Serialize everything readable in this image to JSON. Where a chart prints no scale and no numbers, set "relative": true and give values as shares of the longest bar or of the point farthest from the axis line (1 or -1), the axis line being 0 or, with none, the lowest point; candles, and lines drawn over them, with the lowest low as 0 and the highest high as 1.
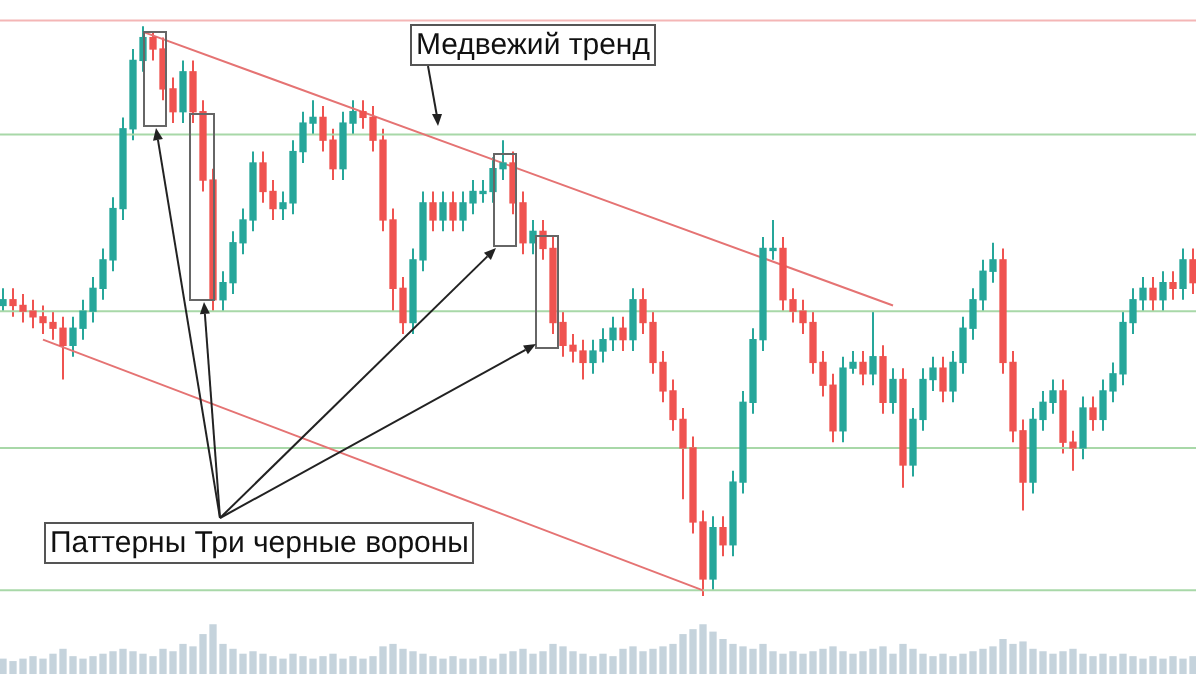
{
  "chart_data": [
    {
      "type": "candlestick",
      "relative": true,
      "categories": [
        null,
        null,
        null,
        null,
        null,
        null,
        null,
        null,
        null,
        null,
        null,
        null,
        null,
        null,
        null,
        null,
        null,
        null,
        null,
        null,
        null,
        null,
        null,
        null,
        null,
        null,
        null,
        null,
        null,
        null,
        null,
        null,
        null,
        null,
        null,
        null,
        null,
        null,
        null,
        null,
        null,
        null,
        null,
        null,
        null,
        null,
        null,
        null,
        null,
        null,
        null,
        null,
        null,
        null,
        null,
        null,
        null,
        null,
        null,
        null,
        null,
        null,
        null,
        null,
        null,
        null,
        null,
        null,
        null,
        null,
        null,
        null,
        null,
        null,
        null,
        null,
        null,
        null,
        null,
        null,
        null,
        null,
        null,
        null,
        null,
        null,
        null,
        null,
        null,
        null,
        null,
        null,
        null,
        null,
        null,
        null,
        null,
        null,
        null,
        null,
        null,
        null,
        null,
        null,
        null,
        null,
        null,
        null,
        null,
        null,
        null,
        null,
        null,
        null,
        null,
        null,
        null,
        null,
        null,
        null
      ],
      "ohlc": [
        [
          0.51,
          0.54,
          0.5,
          0.52
        ],
        [
          0.52,
          0.54,
          0.49,
          0.51
        ],
        [
          0.51,
          0.53,
          0.48,
          0.5
        ],
        [
          0.5,
          0.52,
          0.47,
          0.49
        ],
        [
          0.49,
          0.51,
          0.46,
          0.48
        ],
        [
          0.48,
          0.5,
          0.45,
          0.47
        ],
        [
          0.47,
          0.49,
          0.38,
          0.44
        ],
        [
          0.44,
          0.49,
          0.42,
          0.47
        ],
        [
          0.47,
          0.52,
          0.45,
          0.5
        ],
        [
          0.5,
          0.56,
          0.48,
          0.54
        ],
        [
          0.54,
          0.61,
          0.52,
          0.59
        ],
        [
          0.59,
          0.7,
          0.57,
          0.68
        ],
        [
          0.68,
          0.84,
          0.66,
          0.82
        ],
        [
          0.82,
          0.96,
          0.8,
          0.94
        ],
        [
          0.94,
          1,
          0.92,
          0.98
        ],
        [
          0.98,
          0.99,
          0.94,
          0.96
        ],
        [
          0.96,
          0.98,
          0.87,
          0.89
        ],
        [
          0.89,
          0.91,
          0.83,
          0.85
        ],
        [
          0.85,
          0.94,
          0.83,
          0.92
        ],
        [
          0.92,
          0.94,
          0.83,
          0.85
        ],
        [
          0.85,
          0.87,
          0.71,
          0.73
        ],
        [
          0.73,
          0.75,
          0.5,
          0.52
        ],
        [
          0.52,
          0.57,
          0.5,
          0.55
        ],
        [
          0.55,
          0.64,
          0.53,
          0.62
        ],
        [
          0.62,
          0.68,
          0.6,
          0.66
        ],
        [
          0.66,
          0.78,
          0.64,
          0.76
        ],
        [
          0.76,
          0.78,
          0.69,
          0.71
        ],
        [
          0.71,
          0.73,
          0.66,
          0.68
        ],
        [
          0.68,
          0.71,
          0.66,
          0.69
        ],
        [
          0.69,
          0.8,
          0.67,
          0.78
        ],
        [
          0.78,
          0.85,
          0.76,
          0.83
        ],
        [
          0.83,
          0.87,
          0.81,
          0.84
        ],
        [
          0.84,
          0.86,
          0.78,
          0.8
        ],
        [
          0.8,
          0.82,
          0.73,
          0.75
        ],
        [
          0.75,
          0.85,
          0.73,
          0.83
        ],
        [
          0.83,
          0.87,
          0.81,
          0.85
        ],
        [
          0.85,
          0.87,
          0.82,
          0.84
        ],
        [
          0.84,
          0.86,
          0.78,
          0.8
        ],
        [
          0.8,
          0.82,
          0.64,
          0.66
        ],
        [
          0.66,
          0.68,
          0.5,
          0.54
        ],
        [
          0.54,
          0.56,
          0.46,
          0.48
        ],
        [
          0.48,
          0.61,
          0.46,
          0.59
        ],
        [
          0.59,
          0.71,
          0.57,
          0.69
        ],
        [
          0.69,
          0.71,
          0.64,
          0.66
        ],
        [
          0.66,
          0.71,
          0.64,
          0.69
        ],
        [
          0.69,
          0.71,
          0.64,
          0.66
        ],
        [
          0.66,
          0.71,
          0.64,
          0.69
        ],
        [
          0.69,
          0.73,
          0.67,
          0.71
        ],
        [
          0.71,
          0.73,
          0.69,
          0.71
        ],
        [
          0.71,
          0.77,
          0.69,
          0.75
        ],
        [
          0.75,
          0.8,
          0.73,
          0.76
        ],
        [
          0.76,
          0.78,
          0.67,
          0.69
        ],
        [
          0.69,
          0.71,
          0.6,
          0.62
        ],
        [
          0.62,
          0.66,
          0.6,
          0.64
        ],
        [
          0.64,
          0.66,
          0.59,
          0.61
        ],
        [
          0.61,
          0.63,
          0.46,
          0.48
        ],
        [
          0.48,
          0.5,
          0.42,
          0.44
        ],
        [
          0.44,
          0.46,
          0.41,
          0.43
        ],
        [
          0.43,
          0.45,
          0.38,
          0.41
        ],
        [
          0.41,
          0.45,
          0.39,
          0.43
        ],
        [
          0.43,
          0.47,
          0.41,
          0.45
        ],
        [
          0.45,
          0.49,
          0.43,
          0.47
        ],
        [
          0.47,
          0.49,
          0.43,
          0.45
        ],
        [
          0.45,
          0.54,
          0.43,
          0.52
        ],
        [
          0.52,
          0.54,
          0.46,
          0.48
        ],
        [
          0.48,
          0.5,
          0.39,
          0.41
        ],
        [
          0.41,
          0.43,
          0.34,
          0.36
        ],
        [
          0.36,
          0.38,
          0.29,
          0.31
        ],
        [
          0.31,
          0.33,
          0.17,
          0.26
        ],
        [
          0.26,
          0.28,
          0.11,
          0.13
        ],
        [
          0.13,
          0.15,
          0,
          0.03
        ],
        [
          0.03,
          0.14,
          0.01,
          0.12
        ],
        [
          0.12,
          0.14,
          0.07,
          0.09
        ],
        [
          0.09,
          0.22,
          0.07,
          0.2
        ],
        [
          0.2,
          0.36,
          0.18,
          0.34
        ],
        [
          0.34,
          0.47,
          0.32,
          0.45
        ],
        [
          0.45,
          0.63,
          0.43,
          0.61
        ],
        [
          0.61,
          0.66,
          0.59,
          0.61
        ],
        [
          0.61,
          0.63,
          0.5,
          0.52
        ],
        [
          0.52,
          0.54,
          0.48,
          0.5
        ],
        [
          0.5,
          0.52,
          0.46,
          0.48
        ],
        [
          0.48,
          0.5,
          0.39,
          0.41
        ],
        [
          0.41,
          0.43,
          0.35,
          0.37
        ],
        [
          0.37,
          0.39,
          0.27,
          0.29
        ],
        [
          0.29,
          0.42,
          0.27,
          0.4
        ],
        [
          0.4,
          0.43,
          0.39,
          0.41
        ],
        [
          0.41,
          0.43,
          0.37,
          0.39
        ],
        [
          0.39,
          0.5,
          0.37,
          0.42
        ],
        [
          0.42,
          0.44,
          0.32,
          0.34
        ],
        [
          0.34,
          0.4,
          0.32,
          0.38
        ],
        [
          0.38,
          0.4,
          0.19,
          0.23
        ],
        [
          0.23,
          0.33,
          0.21,
          0.31
        ],
        [
          0.31,
          0.4,
          0.29,
          0.38
        ],
        [
          0.38,
          0.42,
          0.36,
          0.4
        ],
        [
          0.4,
          0.42,
          0.34,
          0.36
        ],
        [
          0.36,
          0.43,
          0.34,
          0.41
        ],
        [
          0.41,
          0.49,
          0.39,
          0.47
        ],
        [
          0.47,
          0.54,
          0.45,
          0.52
        ],
        [
          0.52,
          0.59,
          0.5,
          0.57
        ],
        [
          0.57,
          0.62,
          0.55,
          0.59
        ],
        [
          0.59,
          0.61,
          0.39,
          0.41
        ],
        [
          0.41,
          0.43,
          0.27,
          0.29
        ],
        [
          0.29,
          0.31,
          0.15,
          0.2
        ],
        [
          0.2,
          0.33,
          0.18,
          0.31
        ],
        [
          0.31,
          0.36,
          0.29,
          0.34
        ],
        [
          0.34,
          0.38,
          0.32,
          0.36
        ],
        [
          0.36,
          0.38,
          0.25,
          0.27
        ],
        [
          0.27,
          0.29,
          0.22,
          0.26
        ],
        [
          0.26,
          0.35,
          0.24,
          0.33
        ],
        [
          0.33,
          0.35,
          0.29,
          0.31
        ],
        [
          0.31,
          0.38,
          0.29,
          0.36
        ],
        [
          0.36,
          0.41,
          0.34,
          0.39
        ],
        [
          0.39,
          0.5,
          0.37,
          0.48
        ],
        [
          0.48,
          0.54,
          0.46,
          0.52
        ],
        [
          0.52,
          0.56,
          0.5,
          0.54
        ],
        [
          0.54,
          0.56,
          0.5,
          0.52
        ],
        [
          0.52,
          0.57,
          0.5,
          0.55
        ],
        [
          0.55,
          0.57,
          0.52,
          0.54
        ],
        [
          0.54,
          0.61,
          0.52,
          0.59
        ],
        [
          0.59,
          0.61,
          0.53,
          0.55
        ]
      ],
      "series": [
        {
          "type": "line",
          "color": "#e57373",
          "values": [
            null,
            null,
            null,
            null,
            null,
            null,
            null,
            null,
            null,
            null,
            null,
            null,
            null,
            null,
            0.99,
            null,
            null,
            null,
            null,
            null,
            null,
            null,
            null,
            null,
            null,
            null,
            null,
            null,
            null,
            null,
            null,
            null,
            null,
            null,
            null,
            null,
            null,
            null,
            null,
            null,
            null,
            null,
            null,
            null,
            null,
            null,
            null,
            null,
            null,
            null,
            null,
            null,
            null,
            null,
            null,
            null,
            null,
            null,
            null,
            null,
            null,
            null,
            null,
            null,
            null,
            null,
            null,
            null,
            null,
            null,
            null,
            null,
            null,
            null,
            null,
            null,
            null,
            null,
            null,
            null,
            null,
            null,
            null,
            null,
            null,
            null,
            null,
            null,
            null,
            0.51,
            null,
            null,
            null,
            null,
            null,
            null,
            null,
            null,
            null,
            null,
            null,
            null,
            null,
            null,
            null,
            null,
            null,
            null,
            null,
            null,
            null,
            null,
            null,
            null,
            null,
            null,
            null,
            null,
            null,
            null
          ]
        },
        {
          "type": "line",
          "color": "#e57373",
          "values": [
            null,
            null,
            null,
            null,
            0.45,
            null,
            null,
            null,
            null,
            null,
            null,
            null,
            null,
            null,
            null,
            null,
            null,
            null,
            null,
            null,
            null,
            null,
            null,
            null,
            null,
            null,
            null,
            null,
            null,
            null,
            null,
            null,
            null,
            null,
            null,
            null,
            null,
            null,
            null,
            null,
            null,
            null,
            null,
            null,
            null,
            null,
            null,
            null,
            null,
            null,
            null,
            null,
            null,
            null,
            null,
            null,
            null,
            null,
            null,
            null,
            null,
            null,
            null,
            null,
            null,
            null,
            null,
            null,
            null,
            null,
            0.01,
            null,
            null,
            null,
            null,
            null,
            null,
            null,
            null,
            null,
            null,
            null,
            null,
            null,
            null,
            null,
            null,
            null,
            null,
            null,
            null,
            null,
            null,
            null,
            null,
            null,
            null,
            null,
            null,
            null,
            null,
            null,
            null,
            null,
            null,
            null,
            null,
            null,
            null,
            null,
            null,
            null,
            null,
            null,
            null,
            null,
            null,
            null,
            null,
            null
          ]
        }
      ],
      "ref_lines": [
        {
          "axis": "y",
          "value": 1.01,
          "color": "#f4b6b6"
        },
        {
          "axis": "y",
          "value": 0.81,
          "color": "#a8d8a8"
        },
        {
          "axis": "y",
          "value": 0.5,
          "color": "#a8d8a8"
        },
        {
          "axis": "y",
          "value": 0.26,
          "color": "#a8d8a8"
        },
        {
          "axis": "y",
          "value": 0.01,
          "color": "#a8d8a8"
        }
      ],
      "annotations": [
        "Медвежий тренд",
        "Паттерны Три черные вороны"
      ]
    },
    {
      "type": "bar",
      "relative": true,
      "categories": [
        null,
        null,
        null,
        null,
        null,
        null,
        null,
        null,
        null,
        null,
        null,
        null,
        null,
        null,
        null,
        null,
        null,
        null,
        null,
        null,
        null,
        null,
        null,
        null,
        null,
        null,
        null,
        null,
        null,
        null,
        null,
        null,
        null,
        null,
        null,
        null,
        null,
        null,
        null,
        null,
        null,
        null,
        null,
        null,
        null,
        null,
        null,
        null,
        null,
        null,
        null,
        null,
        null,
        null,
        null,
        null,
        null,
        null,
        null,
        null,
        null,
        null,
        null,
        null,
        null,
        null,
        null,
        null,
        null,
        null,
        null,
        null,
        null,
        null,
        null,
        null,
        null,
        null,
        null,
        null,
        null,
        null,
        null,
        null,
        null,
        null,
        null,
        null,
        null,
        null,
        null,
        null,
        null,
        null,
        null,
        null,
        null,
        null,
        null,
        null,
        null,
        null,
        null,
        null,
        null,
        null,
        null,
        null,
        null,
        null,
        null,
        null,
        null,
        null,
        null,
        null,
        null,
        null,
        null,
        null
      ],
      "color": "#c5d3dc",
      "values": [
        0.3,
        0.25,
        0.3,
        0.35,
        0.3,
        0.4,
        0.5,
        0.35,
        0.3,
        0.35,
        0.4,
        0.45,
        0.5,
        0.45,
        0.4,
        0.35,
        0.5,
        0.45,
        0.6,
        0.55,
        0.8,
        1,
        0.6,
        0.5,
        0.4,
        0.45,
        0.4,
        0.35,
        0.3,
        0.4,
        0.35,
        0.3,
        0.35,
        0.4,
        0.3,
        0.35,
        0.3,
        0.35,
        0.55,
        0.6,
        0.5,
        0.45,
        0.4,
        0.35,
        0.3,
        0.35,
        0.3,
        0.3,
        0.35,
        0.3,
        0.4,
        0.45,
        0.5,
        0.4,
        0.45,
        0.6,
        0.55,
        0.45,
        0.4,
        0.35,
        0.4,
        0.35,
        0.5,
        0.55,
        0.45,
        0.5,
        0.55,
        0.6,
        0.8,
        0.9,
        1,
        0.85,
        0.7,
        0.6,
        0.55,
        0.5,
        0.6,
        0.45,
        0.4,
        0.45,
        0.4,
        0.45,
        0.5,
        0.55,
        0.45,
        0.4,
        0.45,
        0.5,
        0.55,
        0.4,
        0.6,
        0.5,
        0.4,
        0.35,
        0.4,
        0.35,
        0.4,
        0.45,
        0.5,
        0.55,
        0.7,
        0.6,
        0.65,
        0.5,
        0.45,
        0.4,
        0.45,
        0.5,
        0.4,
        0.35,
        0.4,
        0.35,
        0.4,
        0.35,
        0.3,
        0.35,
        0.3,
        0.35,
        0.3,
        0.35
      ]
    }
  ]
}
